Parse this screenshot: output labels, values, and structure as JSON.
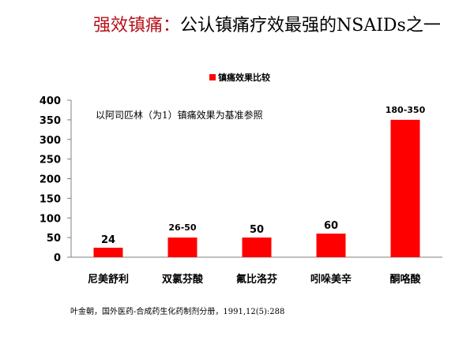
{
  "title": {
    "highlight": "强效镇痛：",
    "rest": "公认镇痛疗效最强的NSAIDs之一"
  },
  "colors": {
    "title_accent": "#b5121b",
    "bar": "#ff0000"
  },
  "chart_data": {
    "type": "bar",
    "categories": [
      "尼美舒利",
      "双氯芬酸",
      "氟比洛芬",
      "吲哚美辛",
      "酮咯酸"
    ],
    "values": [
      24,
      50,
      50,
      60,
      350
    ],
    "data_labels": [
      "24",
      "26-50",
      "50",
      "60",
      "180-350"
    ],
    "series": [
      {
        "name": "镇痛效果比较",
        "values": [
          24,
          50,
          50,
          60,
          350
        ]
      }
    ],
    "annotation": "以阿司匹林（为1）镇痛效果为基准参照",
    "ylim": [
      0,
      400
    ],
    "yticks": [
      0,
      50,
      100,
      150,
      200,
      250,
      300,
      350,
      400
    ],
    "grid": false,
    "legend_position": "top-center"
  },
  "citation": "叶金朝，国外医药-合成药生化药制剂分册，1991,12(5):288"
}
